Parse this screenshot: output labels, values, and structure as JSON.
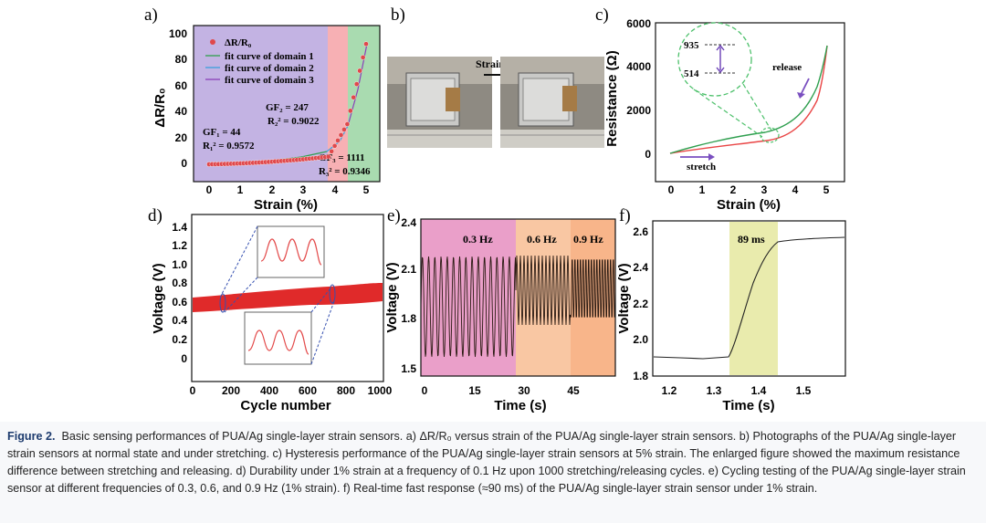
{
  "panels": {
    "a": {
      "letter": "a)",
      "ylabel": "ΔR/R₀",
      "xlabel": "Strain (%)",
      "legend": [
        "ΔR/R₀",
        "fit curve of domain 1",
        "fit curve of domain 2",
        "fit curve of domain 3"
      ],
      "annotations": {
        "gf1": "GF₁ = 44",
        "r1": "R₁² = 0.9572",
        "gf2": "GF₂ = 247",
        "r2": "R₂² = 0.9022",
        "gf3": "GF₃ = 1111",
        "r3": "R₃² = 0.9346"
      },
      "xticks": [
        "0",
        "1",
        "2",
        "3",
        "4",
        "5"
      ],
      "yticks": [
        "0",
        "20",
        "40",
        "60",
        "80",
        "100"
      ]
    },
    "b": {
      "letter": "b)",
      "label": "Strain"
    },
    "c": {
      "letter": "c)",
      "ylabel": "Resistance (Ω)",
      "xlabel": "Strain (%)",
      "inset": [
        "935",
        "514"
      ],
      "release": "release",
      "stretch": "stretch",
      "xticks": [
        "0",
        "1",
        "2",
        "3",
        "4",
        "5"
      ],
      "yticks": [
        "0",
        "2000",
        "4000",
        "6000"
      ]
    },
    "d": {
      "letter": "d)",
      "ylabel": "Voltage (V)",
      "xlabel": "Cycle number",
      "xticks": [
        "0",
        "200",
        "400",
        "600",
        "800",
        "1000"
      ],
      "yticks": [
        "0",
        "0.2",
        "0.4",
        "0.6",
        "0.8",
        "1.0",
        "1.2",
        "1.4"
      ]
    },
    "e": {
      "letter": "e)",
      "ylabel": "Voltage (V)",
      "xlabel": "Time (s)",
      "regions": [
        "0.3 Hz",
        "0.6 Hz",
        "0.9 Hz"
      ],
      "xticks": [
        "0",
        "15",
        "30",
        "45"
      ],
      "yticks": [
        "1.5",
        "1.8",
        "2.1",
        "2.4"
      ]
    },
    "f": {
      "letter": "f)",
      "ylabel": "Voltage (V)",
      "xlabel": "Time (s)",
      "band": "89 ms",
      "xticks": [
        "1.2",
        "1.3",
        "1.4",
        "1.5"
      ],
      "yticks": [
        "1.8",
        "2.0",
        "2.2",
        "2.4",
        "2.6"
      ]
    }
  },
  "colors": {
    "purple_bg": "#c3b3e3",
    "pink_bg": "#f7b0b4",
    "green_bg": "#a9dbb0",
    "marker": "#e0484b",
    "fit1": "#2f9f4f",
    "fit2": "#3aa0dd",
    "fit3": "#8a40b8",
    "e_pink": "#ea9fc9",
    "e_peach": "#f9c7a3",
    "e_orange": "#f8b58a",
    "f_band": "#e9ebad",
    "d_red": "#e02a2a"
  },
  "caption": {
    "title": "Figure 2.",
    "text": "Basic sensing performances of PUA/Ag single-layer strain sensors. a) ΔR/R₀ versus strain of the PUA/Ag single-layer strain sensors. b) Photographs of the PUA/Ag single-layer strain sensors at normal state and under stretching. c) Hysteresis performance of the PUA/Ag single-layer strain sensors at 5% strain. The enlarged figure showed the maximum resistance difference between stretching and releasing. d) Durability under 1% strain at a frequency of 0.1 Hz upon 1000 stretching/releasing cycles. e) Cycling testing of the PUA/Ag single-layer strain sensor at different frequencies of 0.3, 0.6, and 0.9 Hz (1% strain). f) Real-time fast response (≈90 ms) of the PUA/Ag single-layer strain sensor under 1% strain."
  }
}
